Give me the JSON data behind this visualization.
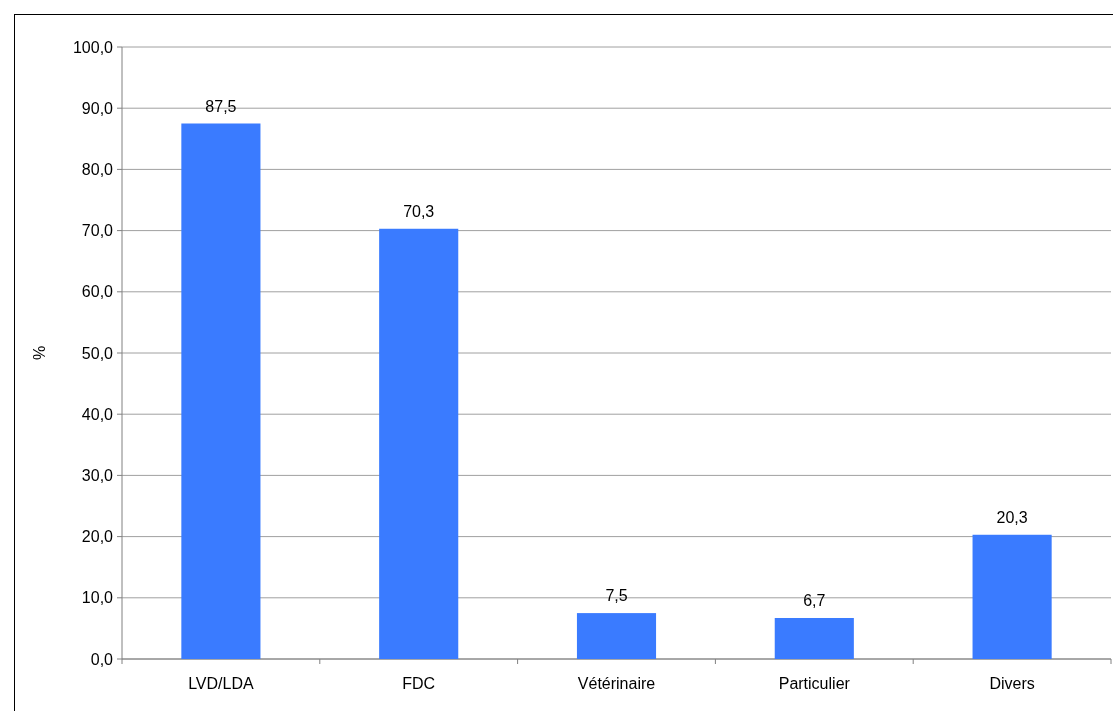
{
  "chart_data": {
    "type": "bar",
    "ylabel": "%",
    "categories": [
      "LVD/LDA",
      "FDC",
      "Vétérinaire",
      "Particulier",
      "Divers"
    ],
    "values": [
      87.5,
      70.3,
      7.5,
      6.7,
      20.3
    ],
    "value_labels": [
      "87,5",
      "70,3",
      "7,5",
      "6,7",
      "20,3"
    ],
    "color": "#3a7bff",
    "ylim": [
      0,
      100
    ],
    "yticks": [
      {
        "value": 0,
        "label": "0,0"
      },
      {
        "value": 10,
        "label": "10,0"
      },
      {
        "value": 20,
        "label": "20,0"
      },
      {
        "value": 30,
        "label": "30,0"
      },
      {
        "value": 40,
        "label": "40,0"
      },
      {
        "value": 50,
        "label": "50,0"
      },
      {
        "value": 60,
        "label": "60,0"
      },
      {
        "value": 70,
        "label": "70,0"
      },
      {
        "value": 80,
        "label": "80,0"
      },
      {
        "value": 90,
        "label": "90,0"
      },
      {
        "value": 100,
        "label": "100,0"
      }
    ],
    "grid": "y"
  }
}
